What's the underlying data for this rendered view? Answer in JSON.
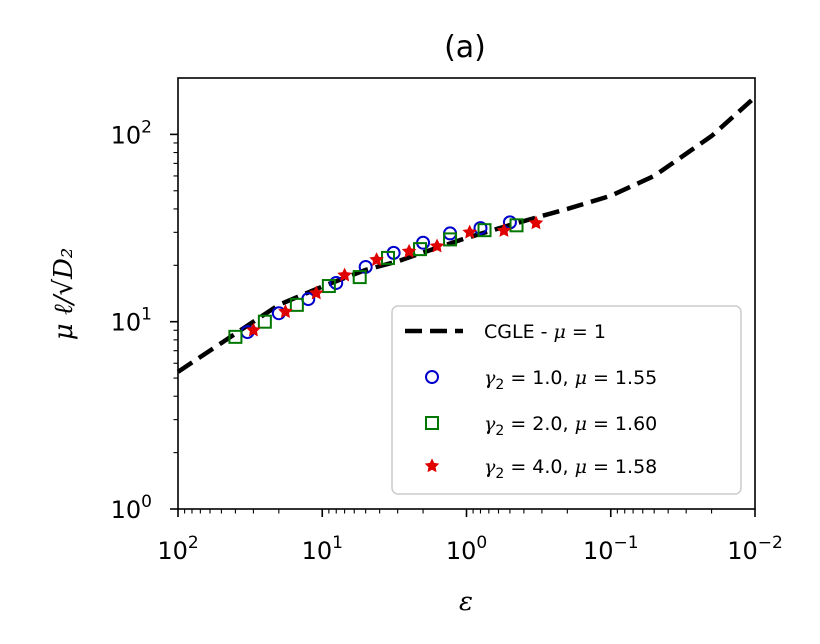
{
  "chart_data": {
    "type": "scatter",
    "title": "(a)",
    "xlabel": "ε",
    "ylabel": "μ ℓ/√D₂",
    "x_scale": "log",
    "y_scale": "log",
    "x_reversed": true,
    "xlim": [
      100,
      0.01
    ],
    "ylim": [
      1,
      200
    ],
    "x_ticks": [
      {
        "value": 100,
        "base": "10",
        "exp": "2"
      },
      {
        "value": 10,
        "base": "10",
        "exp": "1"
      },
      {
        "value": 1,
        "base": "10",
        "exp": "0"
      },
      {
        "value": 0.1,
        "base": "10",
        "exp": "−1"
      },
      {
        "value": 0.01,
        "base": "10",
        "exp": "−2"
      }
    ],
    "y_ticks": [
      {
        "value": 1,
        "base": "10",
        "exp": "0"
      },
      {
        "value": 10,
        "base": "10",
        "exp": "1"
      },
      {
        "value": 100,
        "base": "10",
        "exp": "2"
      }
    ],
    "legend_position": "bottom-right",
    "series": [
      {
        "name": "CGLE - μ = 1",
        "legend_parts": [
          "CGLE - ",
          "μ",
          " = 1"
        ],
        "kind": "line",
        "style": "dashed",
        "color": "#000000",
        "x": [
          100,
          50,
          20,
          10,
          5,
          3,
          2,
          1,
          0.5,
          0.3,
          0.2,
          0.1,
          0.05,
          0.02,
          0.01
        ],
        "y": [
          5.4,
          7.7,
          12.3,
          15.4,
          18.9,
          21.0,
          23.4,
          28.0,
          32.8,
          36.7,
          40.0,
          47.0,
          60.0,
          98.0,
          158.0
        ]
      },
      {
        "name": "γ2 = 1.0, μ = 1.55",
        "legend_parts": [
          "γ",
          "2",
          " = 1.0, ",
          "μ",
          " = 1.55"
        ],
        "kind": "marker",
        "marker": "circle",
        "color": "#0000cc",
        "x": [
          33,
          20,
          12.5,
          8,
          5,
          3.2,
          2,
          1.3,
          0.8,
          0.5
        ],
        "y": [
          8.8,
          11.1,
          13.2,
          16.1,
          19.6,
          23.3,
          26.4,
          29.6,
          31.6,
          33.9
        ]
      },
      {
        "name": "γ2 = 2.0, μ = 1.60",
        "legend_parts": [
          "γ",
          "2",
          " = 2.0, ",
          "μ",
          " = 1.60"
        ],
        "kind": "marker",
        "marker": "square",
        "color": "#007700",
        "x": [
          40,
          25,
          15,
          9,
          5.5,
          3.5,
          2.1,
          1.3,
          0.75,
          0.45
        ],
        "y": [
          8.3,
          10.0,
          12.3,
          15.5,
          17.3,
          21.9,
          24.4,
          27.5,
          30.8,
          32.7
        ]
      },
      {
        "name": "γ2 = 4.0, μ = 1.58",
        "legend_parts": [
          "γ",
          "2",
          " = 4.0, ",
          "μ",
          " = 1.58"
        ],
        "kind": "marker",
        "marker": "star",
        "color": "#e00000",
        "x": [
          30,
          18,
          11,
          7,
          4.2,
          2.5,
          1.6,
          0.95,
          0.55,
          0.33
        ],
        "y": [
          9.0,
          11.3,
          14.2,
          17.7,
          21.4,
          23.7,
          25.3,
          30.0,
          30.6,
          33.6
        ]
      }
    ]
  }
}
